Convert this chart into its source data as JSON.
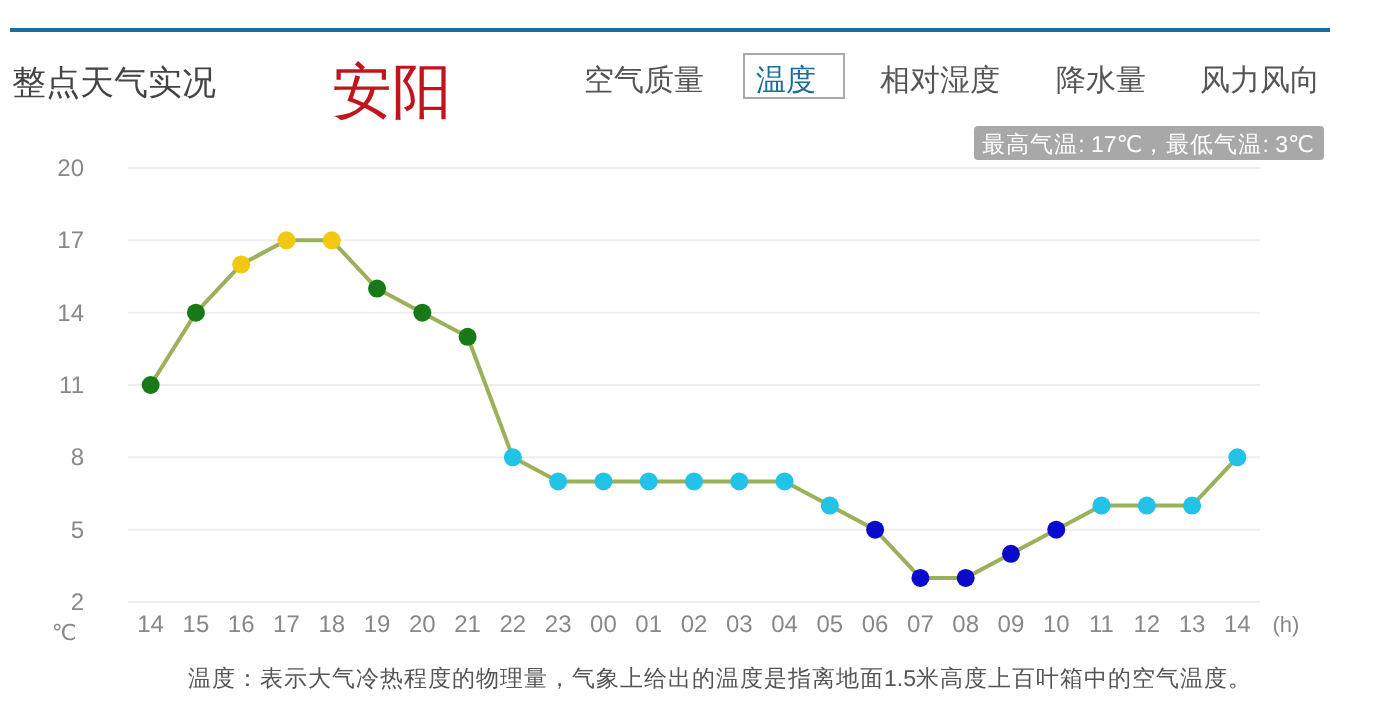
{
  "chart_data": {
    "type": "line",
    "title": "整点天气实况",
    "subtitle": "安阳",
    "annotations": [
      "空气质量",
      "温度",
      "相对湿度",
      "降水量",
      "风力风向",
      "最高气温: 17℃，最低气温: 3℃",
      "温度：表示大气冷热程度的物理量，气象上给出的温度是指离地面1.5米高度上百叶箱中的空气温度。"
    ],
    "categories": [
      "14",
      "15",
      "16",
      "17",
      "18",
      "19",
      "20",
      "21",
      "22",
      "23",
      "00",
      "01",
      "02",
      "03",
      "04",
      "05",
      "06",
      "07",
      "08",
      "09",
      "10",
      "11",
      "12",
      "13",
      "14"
    ],
    "series": [
      {
        "color": "#9bb05a",
        "values": [
          11,
          14,
          16,
          17,
          17,
          15,
          14,
          13,
          8,
          7,
          7,
          7,
          7,
          7,
          7,
          6,
          5,
          3,
          3,
          4,
          5,
          6,
          6,
          6,
          8
        ],
        "colors": [
          "#177a17",
          "#177a17",
          "#f2c811",
          "#f2c811",
          "#f2c811",
          "#177a17",
          "#177a17",
          "#177a17",
          "#22c3e6",
          "#22c3e6",
          "#22c3e6",
          "#22c3e6",
          "#22c3e6",
          "#22c3e6",
          "#22c3e6",
          "#22c3e6",
          "#0a0acc",
          "#0a0acc",
          "#0a0acc",
          "#0a0acc",
          "#0a0acc",
          "#22c3e6",
          "#22c3e6",
          "#22c3e6",
          "#22c3e6"
        ]
      }
    ],
    "xlabel": "(h)",
    "ylabel": "℃",
    "ylim": [
      2,
      20
    ],
    "yticks": [
      2,
      5,
      8,
      11,
      14,
      17,
      20
    ],
    "grid": "y",
    "marker": "circle"
  }
}
